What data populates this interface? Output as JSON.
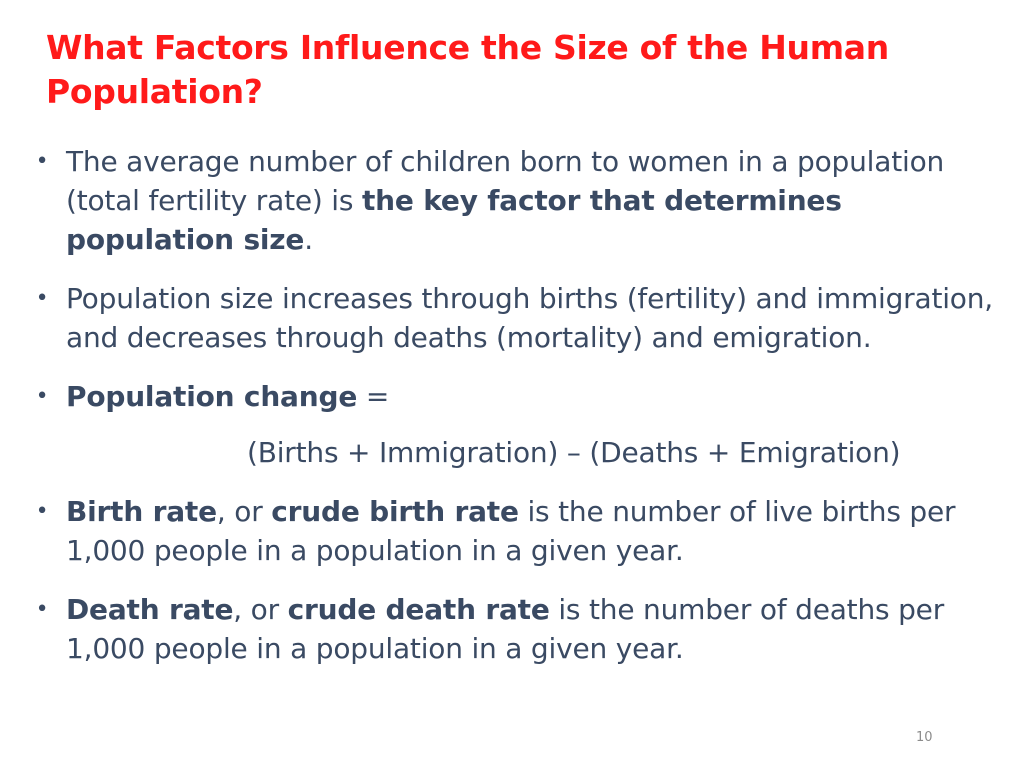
{
  "slide": {
    "title": "What Factors Influence the Size of the Human Population?",
    "bullet_glyph": "•",
    "bullets": [
      {
        "parts": [
          "The average number of children born to women in a population (total fertility rate) is ",
          "the key factor that determines population size",
          "."
        ]
      },
      {
        "parts": [
          "Population size increases through births (fertility) and immigration, and decreases through deaths (mortality) and emigration."
        ]
      },
      {
        "parts": [
          "Population change",
          " ="
        ],
        "equation": "(Births + Immigration) – (Deaths + Emigration)"
      },
      {
        "parts": [
          "Birth rate",
          ", or ",
          "crude birth rate",
          " is the number of live births per 1,000 people in a population in a given year."
        ]
      },
      {
        "parts": [
          "Death rate",
          ", or ",
          "crude death rate",
          " is the number of deaths per 1,000 people in a population in a given year."
        ]
      }
    ],
    "page_number": "10"
  },
  "colors": {
    "title": "#ff1a1a",
    "body_text": "#3a4a63",
    "page_number": "#8c8c8c",
    "background": "#ffffff"
  }
}
